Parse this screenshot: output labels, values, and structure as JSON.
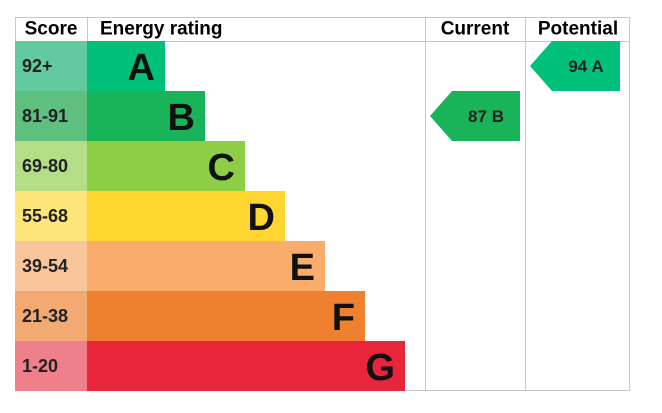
{
  "header": {
    "score": "Score",
    "rating": "Energy rating",
    "current": "Current",
    "potential": "Potential"
  },
  "rows": [
    {
      "score": "92+",
      "letter": "A",
      "color": "#00c07a",
      "score_color": "#63c99f"
    },
    {
      "score": "81-91",
      "letter": "B",
      "color": "#19b459",
      "score_color": "#5fbf7f"
    },
    {
      "score": "69-80",
      "letter": "C",
      "color": "#8dce46",
      "score_color": "#b3dd86"
    },
    {
      "score": "55-68",
      "letter": "D",
      "color": "#ffd530",
      "score_color": "#fde579"
    },
    {
      "score": "39-54",
      "letter": "E",
      "color": "#f9ac6b",
      "score_color": "#f9c69c"
    },
    {
      "score": "21-38",
      "letter": "F",
      "color": "#ef8030",
      "score_color": "#f3aa72"
    },
    {
      "score": "1-20",
      "letter": "G",
      "color": "#e9253b",
      "score_color": "#ef7f8b"
    }
  ],
  "current": {
    "score": 87,
    "rating": "B"
  },
  "potential": {
    "score": 94,
    "rating": "A"
  }
}
